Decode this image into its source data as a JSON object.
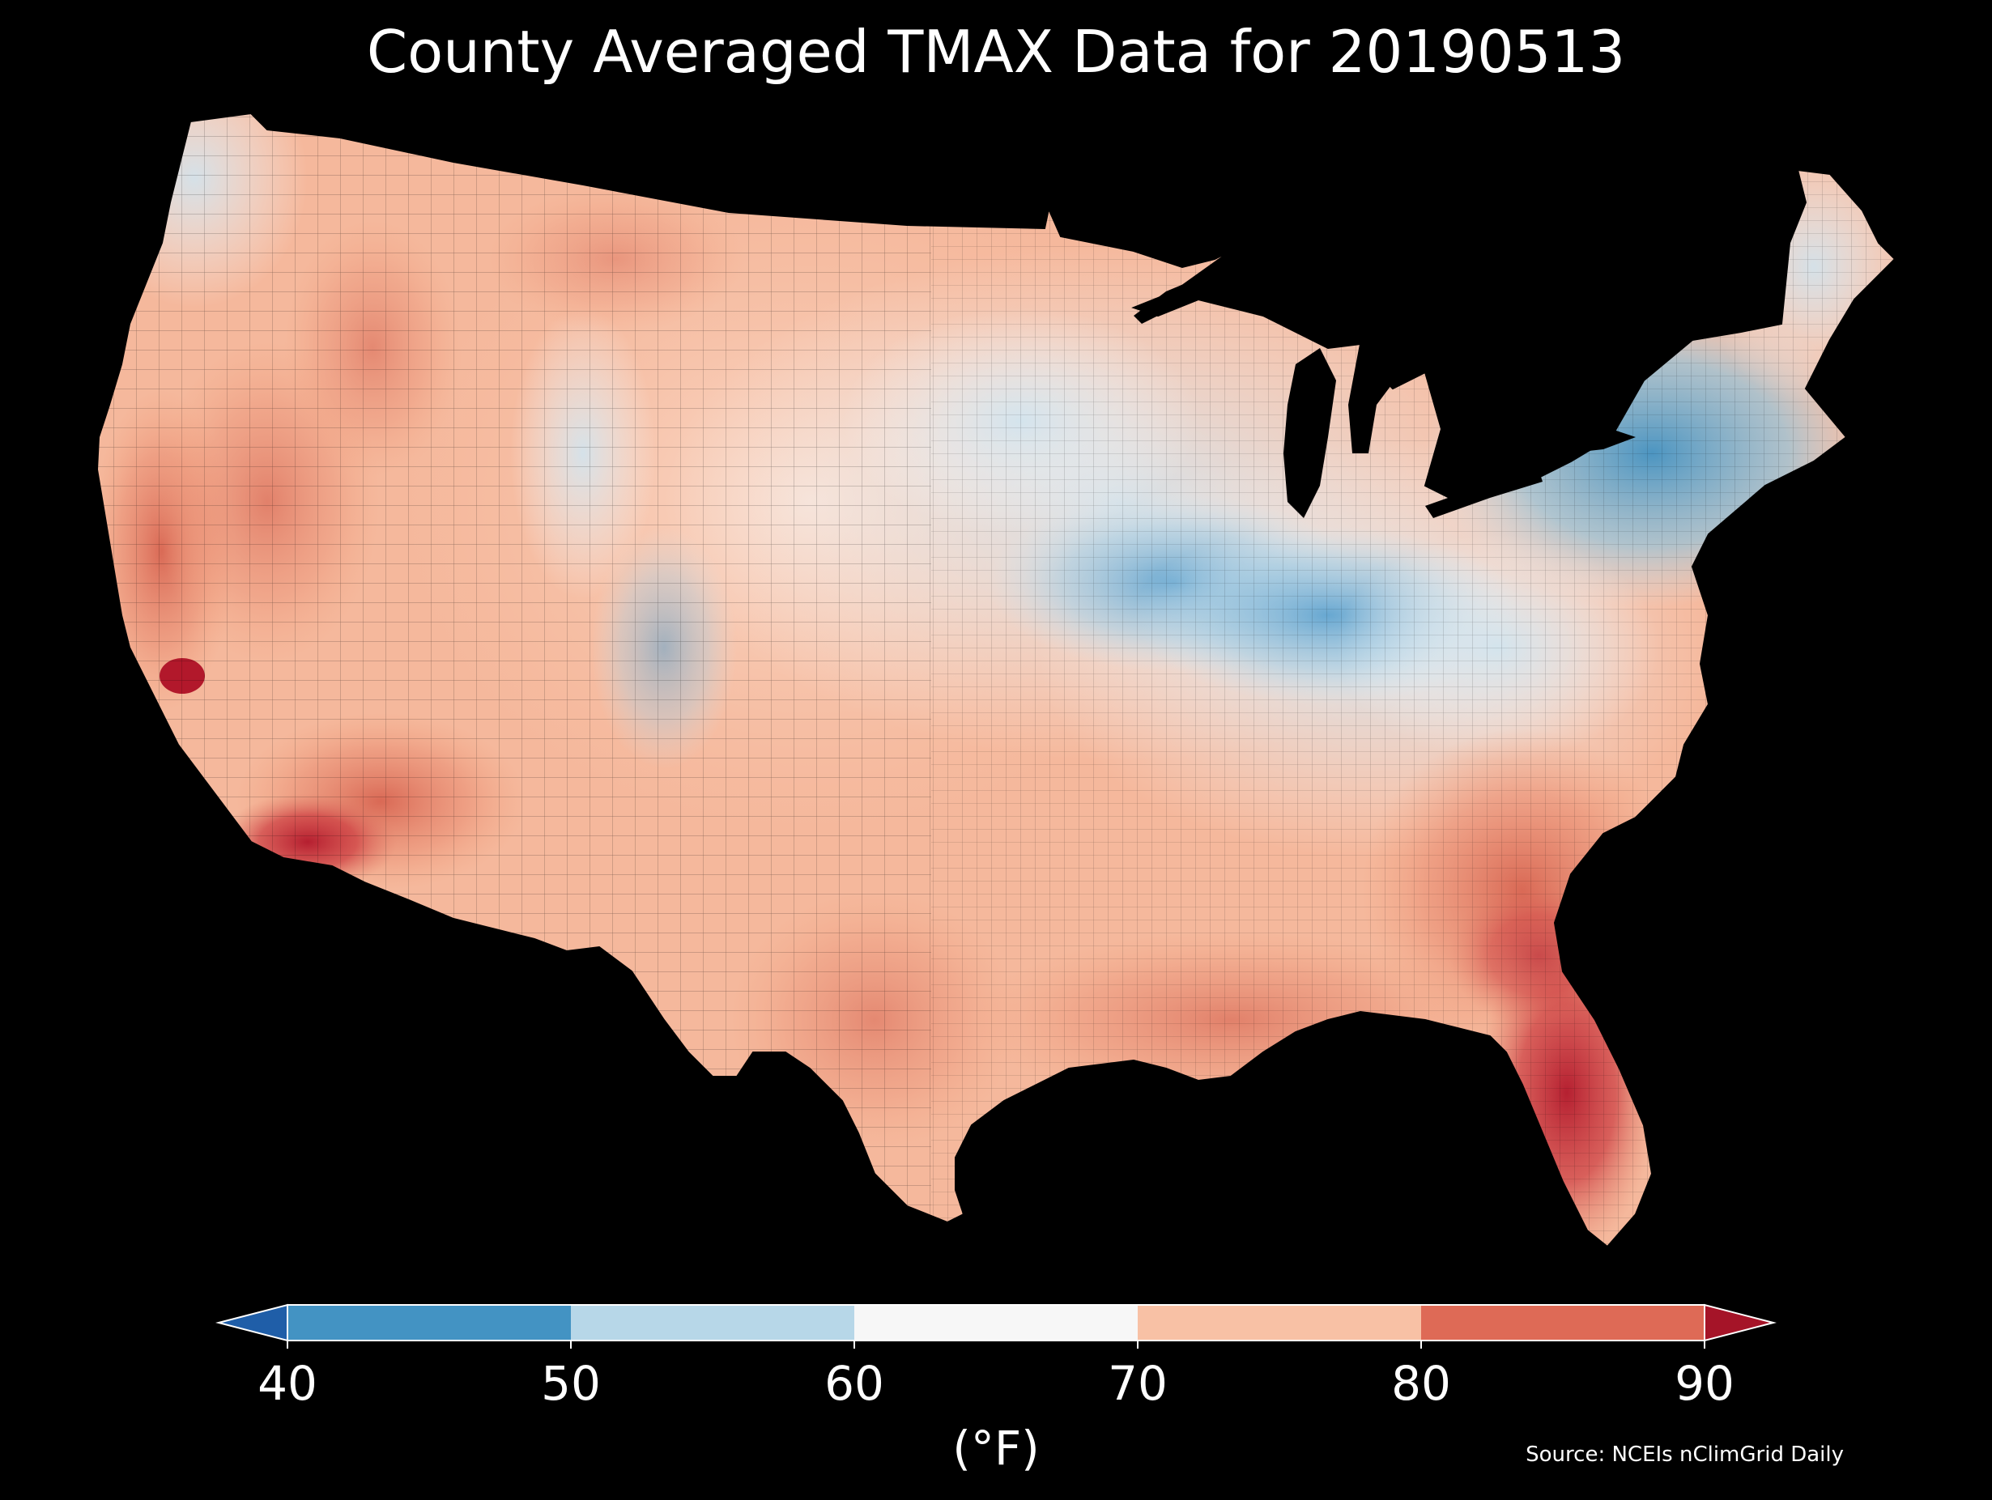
{
  "title": "County Averaged TMAX Data for 20190513",
  "source": "Source: NCEIs nClimGrid Daily",
  "colorbar": {
    "unit_label": "(°F)",
    "ticks": [
      "40",
      "50",
      "60",
      "70",
      "80",
      "90"
    ],
    "bins": [
      {
        "range": [
          40,
          50
        ],
        "color": "#4393c3"
      },
      {
        "range": [
          50,
          60
        ],
        "color": "#b7d7e8"
      },
      {
        "range": [
          60,
          70
        ],
        "color": "#f7f7f7"
      },
      {
        "range": [
          70,
          80
        ],
        "color": "#f8c1a5"
      },
      {
        "range": [
          80,
          90
        ],
        "color": "#de6a56"
      }
    ],
    "under_color": "#1f5ea8",
    "over_color": "#a51428"
  },
  "map": {
    "region": "Contiguous United States",
    "level": "county",
    "variable": "TMAX",
    "date": "20190513",
    "background_color": "#000000",
    "warm_regions": [
      "Southwest desert",
      "Florida",
      "Gulf Coast",
      "California Central Valley"
    ],
    "cool_regions": [
      "New York / New England",
      "Ohio Valley / Great Lakes",
      "Iowa / Illinois corridor"
    ]
  }
}
